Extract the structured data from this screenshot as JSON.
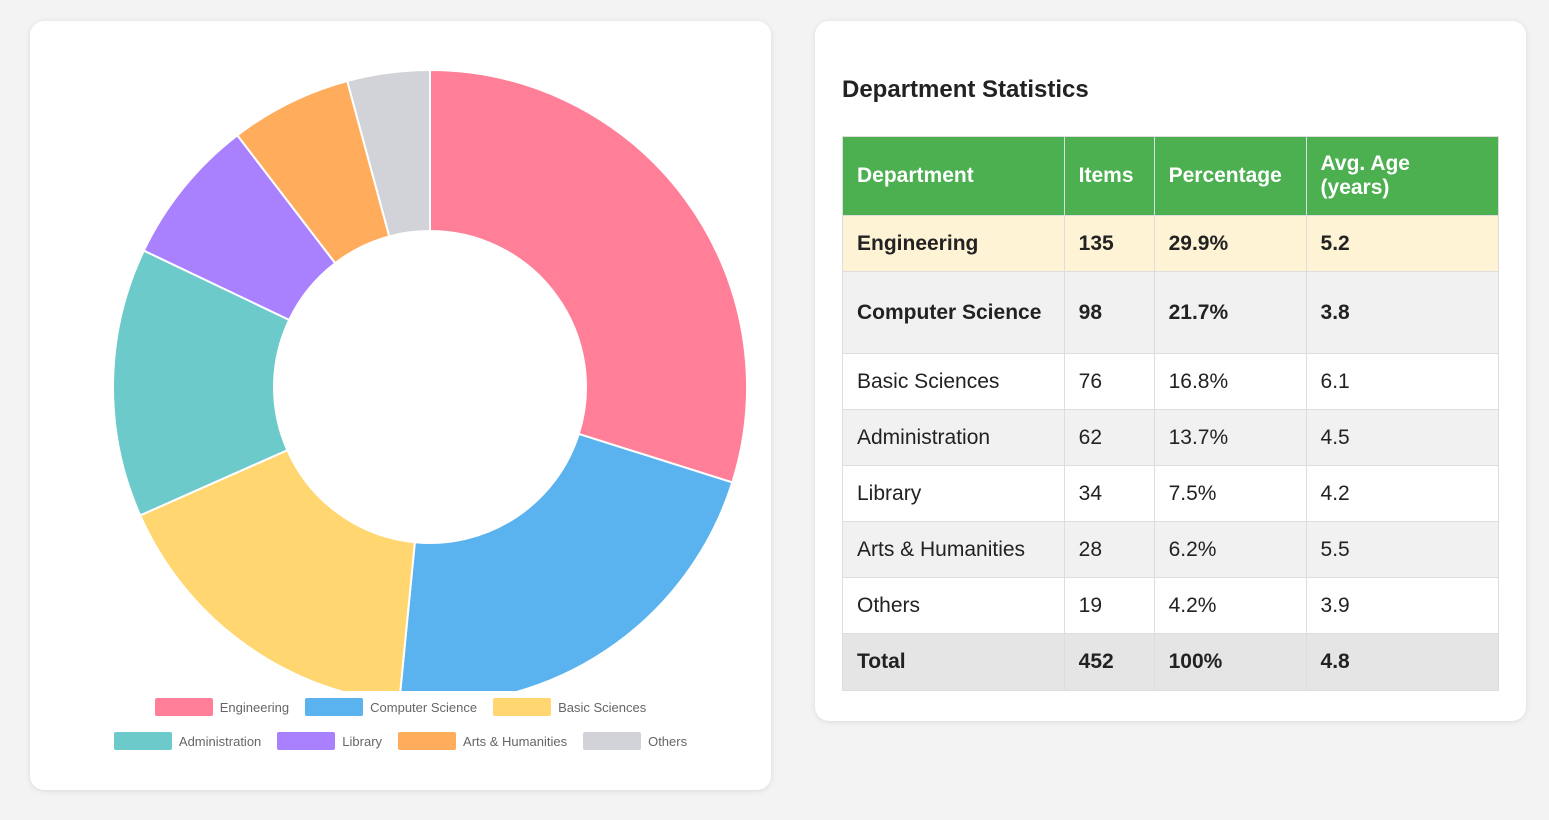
{
  "chart_data": {
    "type": "pie",
    "style": "doughnut",
    "categories": [
      "Engineering",
      "Computer Science",
      "Basic Sciences",
      "Administration",
      "Library",
      "Arts & Humanities",
      "Others"
    ],
    "values": [
      135,
      98,
      76,
      62,
      34,
      28,
      19
    ],
    "colors": [
      "#ff7f98",
      "#5ab2ee",
      "#ffd66f",
      "#6ccaca",
      "#a980fd",
      "#ffac5c",
      "#d1d3d8"
    ],
    "legend": "bottom"
  },
  "stats": {
    "title": "Department Statistics",
    "headers": {
      "department": "Department",
      "items": "Items",
      "percentage": "Percentage",
      "avg_age": "Avg. Age (years)"
    },
    "rows": [
      {
        "department": "Engineering",
        "items": "135",
        "percentage": "29.9%",
        "avg_age": "5.2"
      },
      {
        "department": "Computer Science",
        "items": "98",
        "percentage": "21.7%",
        "avg_age": "3.8"
      },
      {
        "department": "Basic Sciences",
        "items": "76",
        "percentage": "16.8%",
        "avg_age": "6.1"
      },
      {
        "department": "Administration",
        "items": "62",
        "percentage": "13.7%",
        "avg_age": "4.5"
      },
      {
        "department": "Library",
        "items": "34",
        "percentage": "7.5%",
        "avg_age": "4.2"
      },
      {
        "department": "Arts & Humanities",
        "items": "28",
        "percentage": "6.2%",
        "avg_age": "5.5"
      },
      {
        "department": "Others",
        "items": "19",
        "percentage": "4.2%",
        "avg_age": "3.9"
      }
    ],
    "total": {
      "department": "Total",
      "items": "452",
      "percentage": "100%",
      "avg_age": "4.8"
    }
  }
}
